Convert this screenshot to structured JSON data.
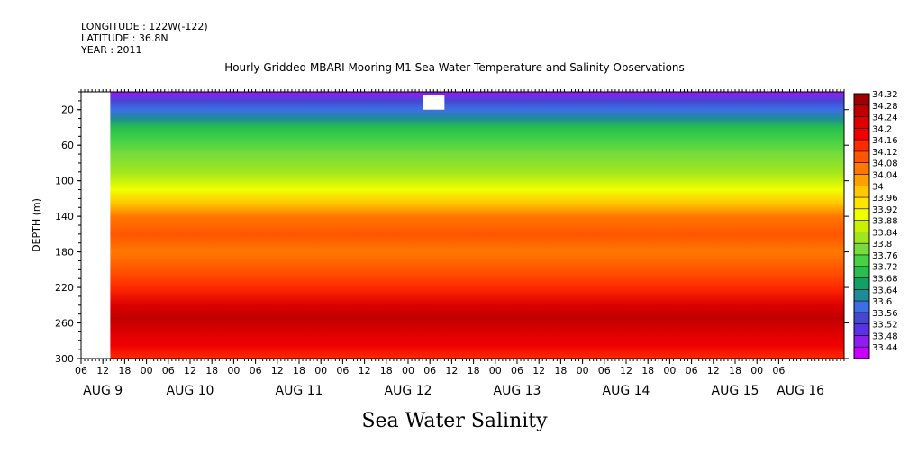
{
  "header": {
    "longitude": "LONGITUDE : 122W(-122)",
    "latitude": "LATITUDE : 36.8N",
    "year": "YEAR : 2011"
  },
  "title": "Hourly Gridded MBARI Mooring M1 Sea Water Temperature and Salinity Observations",
  "footer_label": "Sea Water Salinity",
  "chart_data": {
    "type": "heatmap",
    "title": "Hourly Gridded MBARI Mooring M1 Sea Water Temperature and Salinity Observations",
    "variable": "Sea Water Salinity",
    "ylabel": "DEPTH (m)",
    "y_inverted": true,
    "ylim": [
      0,
      300
    ],
    "y_ticks": [
      20,
      60,
      100,
      140,
      180,
      220,
      260,
      300
    ],
    "x_hour_ticks": [
      "06",
      "12",
      "18",
      "00",
      "06",
      "12",
      "18",
      "00",
      "06",
      "12",
      "18",
      "00",
      "06",
      "12",
      "18",
      "00",
      "06",
      "12",
      "18",
      "00",
      "06",
      "12",
      "18",
      "00",
      "06",
      "12",
      "18",
      "00",
      "06",
      "12",
      "18",
      "00",
      "06"
    ],
    "x_day_labels": [
      "AUG 9",
      "AUG 10",
      "AUG 11",
      "AUG 12",
      "AUG 13",
      "AUG 14",
      "AUG 15",
      "AUG 16"
    ],
    "x_day_label_hours": [
      12,
      36,
      66,
      96,
      126,
      156,
      186,
      204
    ],
    "data_start_hour": 14,
    "x_range_hours": [
      6,
      216
    ],
    "colorbar_levels": [
      34.32,
      34.28,
      34.24,
      34.2,
      34.16,
      34.12,
      34.08,
      34.04,
      34,
      33.96,
      33.92,
      33.88,
      33.84,
      33.8,
      33.76,
      33.72,
      33.68,
      33.64,
      33.6,
      33.56,
      33.52,
      33.48,
      33.44
    ],
    "colorbar_colors": [
      "#a00000",
      "#c00000",
      "#dc0000",
      "#f00000",
      "#ff2a00",
      "#ff5500",
      "#ff7800",
      "#ffa000",
      "#ffc800",
      "#ffe600",
      "#f0ff00",
      "#c8f000",
      "#a0e61e",
      "#78dc3c",
      "#46d246",
      "#28be50",
      "#14a064",
      "#1e8c96",
      "#3c6ee6",
      "#4646d2",
      "#5a32e6",
      "#8c1ef0",
      "#c800ff"
    ],
    "depth_profile": [
      {
        "depth": 2,
        "value": 33.5
      },
      {
        "depth": 10,
        "value": 33.56
      },
      {
        "depth": 20,
        "value": 33.62
      },
      {
        "depth": 30,
        "value": 33.66
      },
      {
        "depth": 40,
        "value": 33.7
      },
      {
        "depth": 55,
        "value": 33.76
      },
      {
        "depth": 70,
        "value": 33.8
      },
      {
        "depth": 90,
        "value": 33.86
      },
      {
        "depth": 110,
        "value": 33.94
      },
      {
        "depth": 125,
        "value": 34.0
      },
      {
        "depth": 140,
        "value": 34.06
      },
      {
        "depth": 160,
        "value": 34.1
      },
      {
        "depth": 180,
        "value": 34.09
      },
      {
        "depth": 200,
        "value": 34.12
      },
      {
        "depth": 220,
        "value": 34.18
      },
      {
        "depth": 240,
        "value": 34.24
      },
      {
        "depth": 255,
        "value": 34.28
      },
      {
        "depth": 270,
        "value": 34.24
      },
      {
        "depth": 285,
        "value": 34.2
      },
      {
        "depth": 300,
        "value": 34.18
      }
    ],
    "missing_blocks": [
      {
        "hour_start": 6,
        "hour_end": 14,
        "depth_start": 0,
        "depth_end": 300
      },
      {
        "hour_start": 100,
        "hour_end": 106,
        "depth_start": 4,
        "depth_end": 20
      }
    ]
  }
}
